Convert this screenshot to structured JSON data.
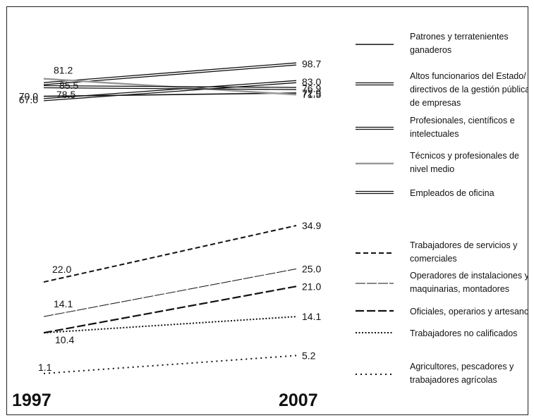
{
  "chart_data": {
    "type": "slope",
    "x_labels": [
      "1997",
      "2007"
    ],
    "groups": [
      {
        "series": [
          {
            "name": "Patrones y terratenientes ganaderos",
            "legend_lines": [
              "Patrones y terratenientes",
              "ganaderos"
            ],
            "style": "solid",
            "color": "#111111",
            "start": 70.0,
            "end": 72.9,
            "start_label": "70.0",
            "end_label": "72.9"
          },
          {
            "name": "Altos funcionarios del Estado/ directivos de la gestión pública y de empresas",
            "legend_lines": [
              "Altos funcionarios del Estado/",
              "directivos de la gestión pública y",
              "de empresas"
            ],
            "style": "double",
            "color": "#111111",
            "start": 81.2,
            "end": 98.7,
            "start_label": "81.2",
            "end_label": "98.7"
          },
          {
            "name": "Profesionales, científicos e intelectuales",
            "legend_lines": [
              "Profesionales, científicos e",
              "intelectuales"
            ],
            "style": "double",
            "color": "#111111",
            "start": 67.0,
            "end": 83.0,
            "start_label": "67.0",
            "end_label": "83.0"
          },
          {
            "name": "Técnicos y profesionales de nivel medio",
            "legend_lines": [
              "Técnicos y profesionales de",
              "nivel medio"
            ],
            "style": "gray",
            "color": "#9a9a9a",
            "start": 85.5,
            "end": 71.5,
            "start_label": "85.5",
            "end_label": "71.5"
          },
          {
            "name": "Empleados de oficina",
            "legend_lines": [
              "Empleados de oficina"
            ],
            "style": "double",
            "color": "#111111",
            "start": 78.5,
            "end": 76.9,
            "start_label": "78.5",
            "end_label": "76.9"
          }
        ]
      },
      {
        "series": [
          {
            "name": "Trabajadores de servicios y comerciales",
            "legend_lines": [
              "Trabajadores de servicios y",
              "comerciales"
            ],
            "style": "dashed",
            "color": "#111111",
            "start": 22.0,
            "end": 34.9,
            "start_label": "22.0",
            "end_label": "34.9"
          },
          {
            "name": "Operadores de instalaciones y maquinarias, montadores",
            "legend_lines": [
              "Operadores de instalaciones y",
              "maquinarias, montadores"
            ],
            "style": "longdash-thin",
            "color": "#111111",
            "start": 14.1,
            "end": 25.0,
            "start_label": "14.1",
            "end_label": "25.0"
          },
          {
            "name": "Oficiales, operarios y artesanos",
            "legend_lines": [
              "Oficiales, operarios y artesanos"
            ],
            "style": "longdash",
            "color": "#111111",
            "start": 10.4,
            "end": 21.0,
            "start_label": "10.4",
            "end_label": "21.0"
          },
          {
            "name": "Trabajadores no calificados",
            "legend_lines": [
              "Trabajadores no calificados"
            ],
            "style": "dotted",
            "color": "#111111",
            "start": 10.4,
            "end": 14.1,
            "start_label": "",
            "end_label": "14.1"
          },
          {
            "name": "Agricultores, pescadores y trabajadores agrícolas",
            "legend_lines": [
              "Agricultores, pescadores y",
              "trabajadores agrícolas"
            ],
            "style": "dotted-sparse",
            "color": "#111111",
            "start": 1.1,
            "end": 5.2,
            "start_label": "1.1",
            "end_label": "5.2"
          }
        ]
      }
    ]
  }
}
